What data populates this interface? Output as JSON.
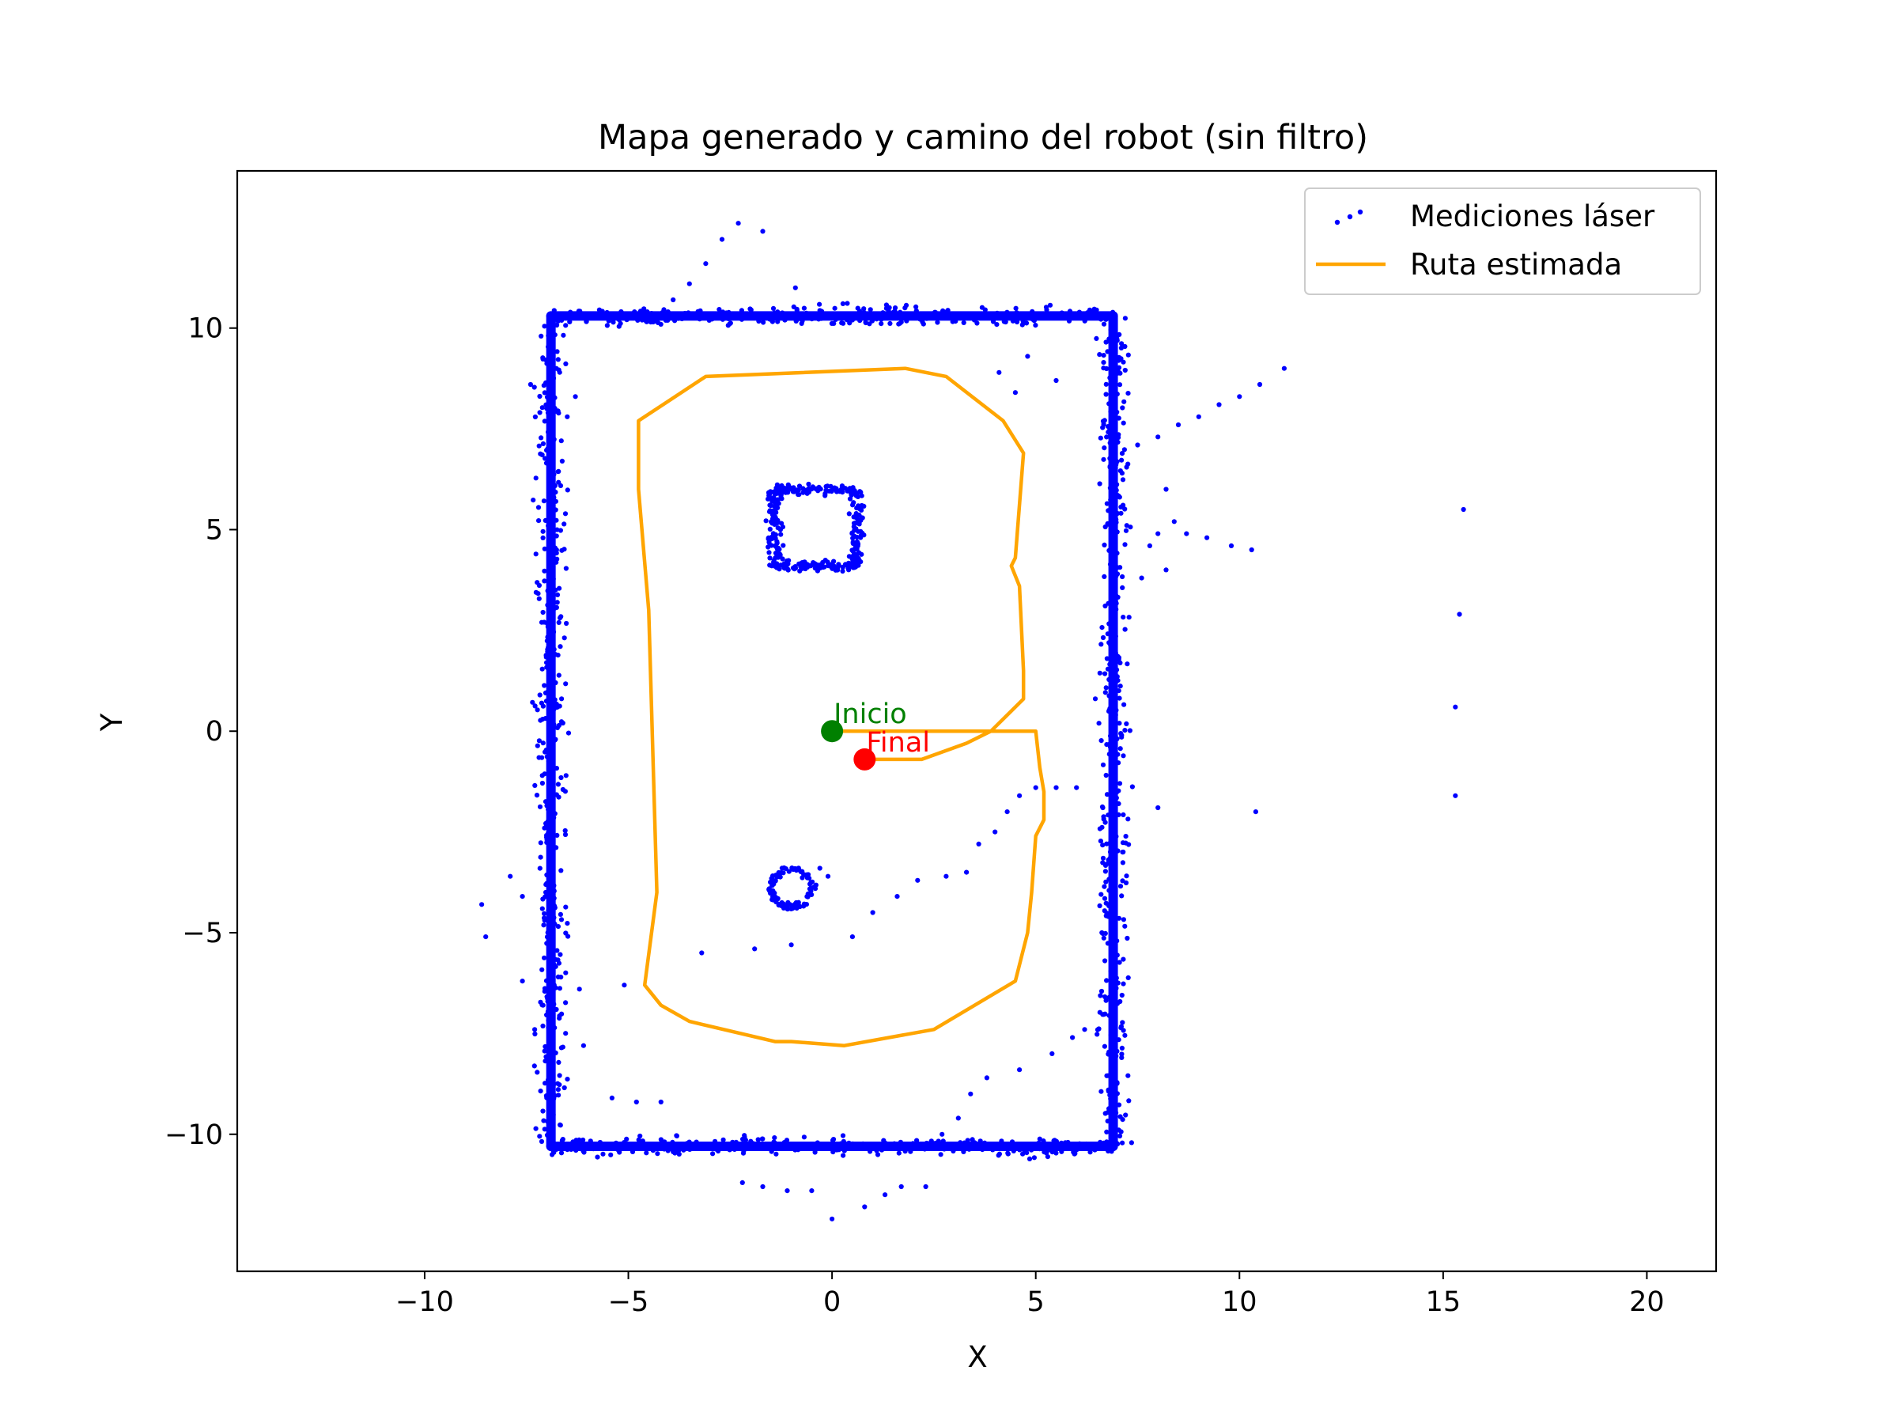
{
  "chart_data": {
    "type": "scatter",
    "title": "Mapa generado y camino del robot (sin filtro)",
    "xlabel": "X",
    "ylabel": "Y",
    "xlim": [
      -14.6,
      21.7
    ],
    "ylim": [
      -13.4,
      13.9
    ],
    "xticks": [
      -10,
      -5,
      0,
      5,
      10,
      15,
      20
    ],
    "yticks": [
      -10,
      -5,
      0,
      5,
      10
    ],
    "grid": false,
    "legend": {
      "placement": "top-right"
    },
    "colors": {
      "laser": "#0000ff",
      "path": "#ffa500",
      "start": "#008000",
      "end": "#ff0000"
    },
    "series": [
      {
        "name": "Mediciones láser",
        "kind": "scatter",
        "walls": {
          "outer_rectangle": {
            "x": [
              -6.9,
              6.9
            ],
            "y": [
              -10.3,
              10.3
            ]
          },
          "inner_square": {
            "x": [
              -1.4,
              0.6
            ],
            "y": [
              4.1,
              6.0
            ]
          },
          "inner_ring": {
            "center": [
              -1.0,
              -3.9
            ],
            "radius": 0.5
          }
        },
        "outliers": [
          [
            -2.3,
            12.6
          ],
          [
            -1.7,
            12.4
          ],
          [
            -2.7,
            12.2
          ],
          [
            -3.1,
            11.6
          ],
          [
            -3.5,
            11.1
          ],
          [
            -3.9,
            10.7
          ],
          [
            -0.9,
            11.0
          ],
          [
            7.5,
            7.1
          ],
          [
            8.0,
            7.3
          ],
          [
            8.5,
            7.6
          ],
          [
            9.0,
            7.8
          ],
          [
            9.5,
            8.1
          ],
          [
            10.0,
            8.3
          ],
          [
            10.5,
            8.6
          ],
          [
            11.1,
            9.0
          ],
          [
            8.2,
            6.0
          ],
          [
            8.4,
            5.2
          ],
          [
            8.0,
            4.9
          ],
          [
            7.8,
            4.6
          ],
          [
            8.7,
            4.9
          ],
          [
            9.2,
            4.8
          ],
          [
            9.8,
            4.6
          ],
          [
            10.3,
            4.5
          ],
          [
            8.2,
            4.0
          ],
          [
            7.6,
            3.8
          ],
          [
            15.5,
            5.5
          ],
          [
            15.4,
            2.9
          ],
          [
            15.3,
            0.6
          ],
          [
            15.3,
            -1.6
          ],
          [
            10.4,
            -2.0
          ],
          [
            8.0,
            -1.9
          ],
          [
            -8.6,
            -4.3
          ],
          [
            -8.5,
            -5.1
          ],
          [
            -7.9,
            -3.6
          ],
          [
            -7.6,
            -4.1
          ],
          [
            -7.3,
            -7.4
          ],
          [
            -7.6,
            -6.2
          ],
          [
            -6.2,
            -6.4
          ],
          [
            -5.1,
            -6.3
          ],
          [
            -3.2,
            -5.5
          ],
          [
            -1.9,
            -5.4
          ],
          [
            -1.0,
            -5.3
          ],
          [
            0.5,
            -5.1
          ],
          [
            1.0,
            -4.5
          ],
          [
            1.6,
            -4.1
          ],
          [
            2.1,
            -3.7
          ],
          [
            2.8,
            -3.6
          ],
          [
            3.3,
            -3.5
          ],
          [
            3.6,
            -2.8
          ],
          [
            4.0,
            -2.5
          ],
          [
            4.3,
            -2.0
          ],
          [
            4.6,
            -1.6
          ],
          [
            5.0,
            -1.4
          ],
          [
            5.5,
            -1.4
          ],
          [
            6.0,
            -1.4
          ],
          [
            -0.3,
            -3.4
          ],
          [
            -0.1,
            -3.6
          ],
          [
            -5.4,
            -9.1
          ],
          [
            -4.8,
            -9.2
          ],
          [
            -4.2,
            -9.2
          ],
          [
            -6.1,
            -7.8
          ],
          [
            -2.2,
            -11.2
          ],
          [
            -1.7,
            -11.3
          ],
          [
            -1.1,
            -11.4
          ],
          [
            -0.5,
            -11.4
          ],
          [
            0.0,
            -12.1
          ],
          [
            0.8,
            -11.8
          ],
          [
            1.3,
            -11.5
          ],
          [
            1.7,
            -11.3
          ],
          [
            2.3,
            -11.3
          ],
          [
            5.4,
            -8.0
          ],
          [
            4.6,
            -8.4
          ],
          [
            3.8,
            -8.6
          ],
          [
            3.4,
            -9.0
          ],
          [
            3.1,
            -9.6
          ],
          [
            2.7,
            -10.0
          ],
          [
            5.9,
            -7.6
          ],
          [
            6.2,
            -7.4
          ],
          [
            4.8,
            9.3
          ],
          [
            5.5,
            8.7
          ],
          [
            4.5,
            8.4
          ],
          [
            4.1,
            8.9
          ],
          [
            -7.0,
            8.0
          ],
          [
            -6.5,
            7.8
          ],
          [
            -6.3,
            8.3
          ],
          [
            -7.4,
            8.6
          ]
        ]
      },
      {
        "name": "Ruta estimada",
        "kind": "line",
        "x": [
          0,
          5.0,
          5.1,
          5.2,
          5.2,
          5.0,
          4.9,
          4.8,
          4.5,
          2.5,
          0.3,
          -1.0,
          -1.4,
          -3.5,
          -4.2,
          -4.6,
          -4.3,
          -4.5,
          -4.75,
          -4.75,
          -3.1,
          1.8,
          2.8,
          4.2,
          4.7,
          4.5,
          4.4,
          4.6,
          4.7,
          4.7,
          3.9,
          3.3,
          2.2,
          0.8
        ],
        "y": [
          0,
          0,
          -0.9,
          -1.5,
          -2.2,
          -2.6,
          -4.0,
          -5.0,
          -6.2,
          -7.4,
          -7.8,
          -7.7,
          -7.7,
          -7.2,
          -6.8,
          -6.3,
          -4.0,
          3.0,
          6.0,
          7.7,
          8.8,
          9.0,
          8.8,
          7.7,
          6.9,
          4.3,
          4.1,
          3.6,
          1.5,
          0.8,
          0.0,
          -0.3,
          -0.7,
          -0.7
        ]
      },
      {
        "name": "Inicio",
        "kind": "marker",
        "x": 0,
        "y": 0
      },
      {
        "name": "Final",
        "kind": "marker",
        "x": 0.8,
        "y": -0.7
      }
    ]
  }
}
